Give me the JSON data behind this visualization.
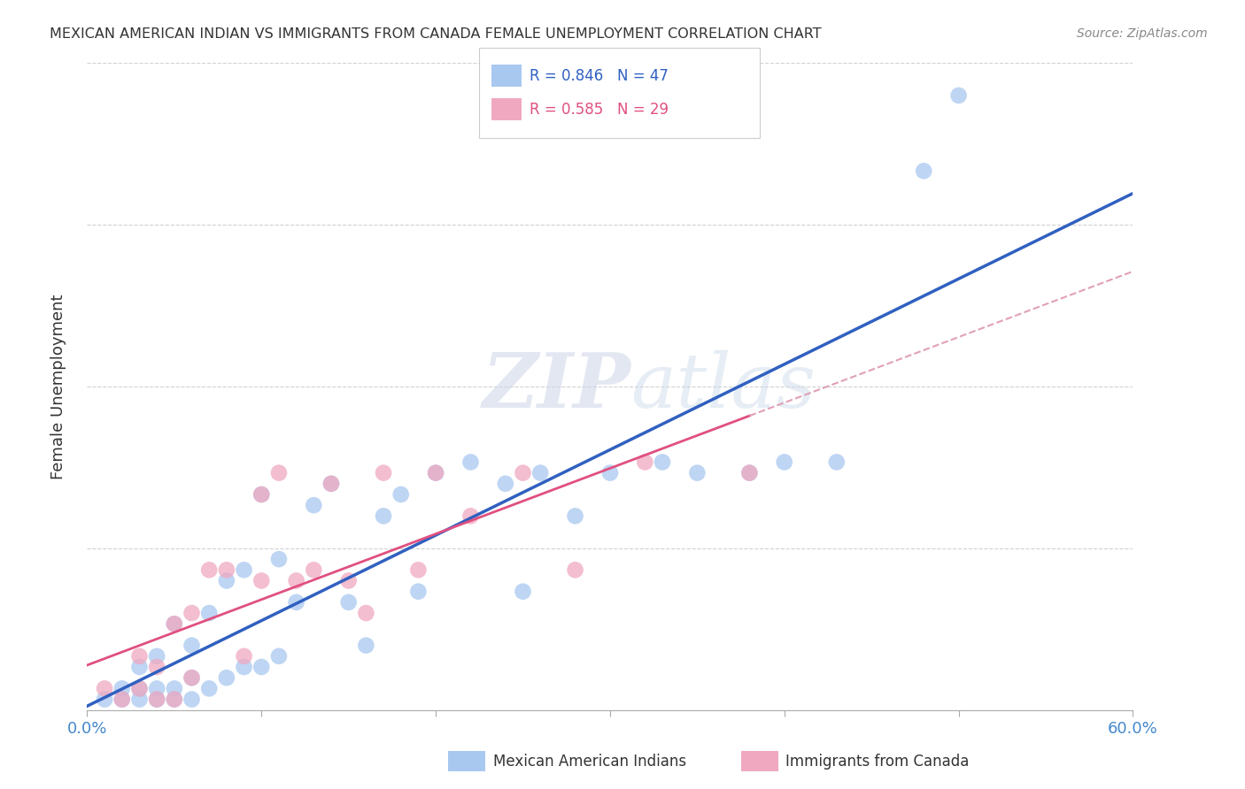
{
  "title": "MEXICAN AMERICAN INDIAN VS IMMIGRANTS FROM CANADA FEMALE UNEMPLOYMENT CORRELATION CHART",
  "source": "Source: ZipAtlas.com",
  "ylabel": "Female Unemployment",
  "xlim": [
    0.0,
    0.6
  ],
  "ylim": [
    0.0,
    0.6
  ],
  "blue_R": 0.846,
  "blue_N": 47,
  "pink_R": 0.585,
  "pink_N": 29,
  "blue_color": "#a8c8f0",
  "pink_color": "#f0a8c0",
  "blue_line_color": "#3060c0",
  "pink_line_color": "#e05080",
  "pink_dash_color": "#e0a0b8",
  "watermark_zip": "ZIP",
  "watermark_atlas": "atlas",
  "background_color": "#ffffff",
  "blue_scatter_x": [
    0.01,
    0.02,
    0.02,
    0.03,
    0.03,
    0.03,
    0.04,
    0.04,
    0.04,
    0.05,
    0.05,
    0.05,
    0.06,
    0.06,
    0.06,
    0.07,
    0.07,
    0.08,
    0.08,
    0.09,
    0.09,
    0.1,
    0.1,
    0.11,
    0.11,
    0.12,
    0.13,
    0.14,
    0.15,
    0.16,
    0.17,
    0.18,
    0.19,
    0.2,
    0.22,
    0.24,
    0.25,
    0.26,
    0.28,
    0.3,
    0.33,
    0.35,
    0.38,
    0.4,
    0.43,
    0.48,
    0.5
  ],
  "blue_scatter_y": [
    0.01,
    0.01,
    0.02,
    0.01,
    0.02,
    0.04,
    0.01,
    0.02,
    0.05,
    0.01,
    0.02,
    0.08,
    0.01,
    0.03,
    0.06,
    0.02,
    0.09,
    0.03,
    0.12,
    0.04,
    0.13,
    0.04,
    0.2,
    0.05,
    0.14,
    0.1,
    0.19,
    0.21,
    0.1,
    0.06,
    0.18,
    0.2,
    0.11,
    0.22,
    0.23,
    0.21,
    0.11,
    0.22,
    0.18,
    0.22,
    0.23,
    0.22,
    0.22,
    0.23,
    0.23,
    0.5,
    0.57
  ],
  "pink_scatter_x": [
    0.01,
    0.02,
    0.03,
    0.03,
    0.04,
    0.04,
    0.05,
    0.05,
    0.06,
    0.06,
    0.07,
    0.08,
    0.09,
    0.1,
    0.1,
    0.11,
    0.12,
    0.13,
    0.14,
    0.15,
    0.16,
    0.17,
    0.19,
    0.2,
    0.22,
    0.25,
    0.28,
    0.32,
    0.38
  ],
  "pink_scatter_y": [
    0.02,
    0.01,
    0.02,
    0.05,
    0.01,
    0.04,
    0.01,
    0.08,
    0.03,
    0.09,
    0.13,
    0.13,
    0.05,
    0.12,
    0.2,
    0.22,
    0.12,
    0.13,
    0.21,
    0.12,
    0.09,
    0.22,
    0.13,
    0.22,
    0.18,
    0.22,
    0.13,
    0.23,
    0.22
  ]
}
